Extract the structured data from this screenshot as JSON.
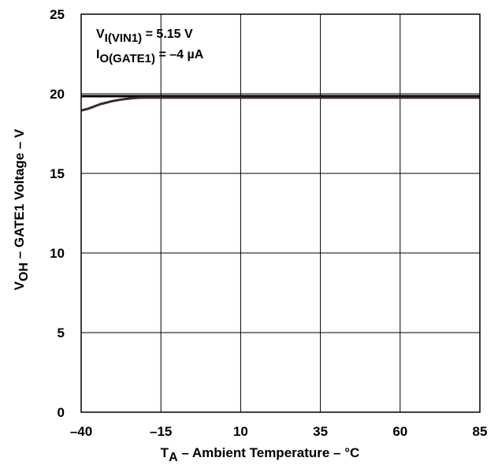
{
  "chart_data": {
    "type": "line",
    "title": "",
    "xlabel": {
      "main": "T",
      "sub": "A",
      "rest": " – Ambient Temperature – °C"
    },
    "ylabel": {
      "main": "V",
      "sub": "OH",
      "rest": " – GATE1 Voltage – V"
    },
    "xlim": [
      -40,
      85
    ],
    "ylim": [
      0,
      25
    ],
    "x_ticks": [
      -40,
      -15,
      10,
      35,
      60,
      85
    ],
    "x_tick_labels": [
      "–40",
      "–15",
      "10",
      "35",
      "60",
      "85"
    ],
    "y_ticks": [
      0,
      5,
      10,
      15,
      20,
      25
    ],
    "y_tick_labels": [
      "0",
      "5",
      "10",
      "15",
      "20",
      "25"
    ],
    "grid": true,
    "annotations": [
      {
        "main": "V",
        "sub": "I(VIN1)",
        "rest": " = 5.15 V"
      },
      {
        "main": "I",
        "sub": "O(GATE1)",
        "rest": " = –4 µA"
      }
    ],
    "reference_line": {
      "y": 19.85,
      "color": "#000000"
    },
    "series": [
      {
        "color": "#3a2a30",
        "x": [
          -40,
          -38,
          -36,
          -34,
          -32,
          -30,
          -28,
          -26,
          -24,
          -22,
          -20,
          -15,
          10,
          35,
          60,
          85
        ],
        "y": [
          18.95,
          19.05,
          19.2,
          19.35,
          19.45,
          19.55,
          19.62,
          19.68,
          19.72,
          19.75,
          19.76,
          19.76,
          19.76,
          19.76,
          19.76,
          19.76
        ]
      }
    ]
  }
}
